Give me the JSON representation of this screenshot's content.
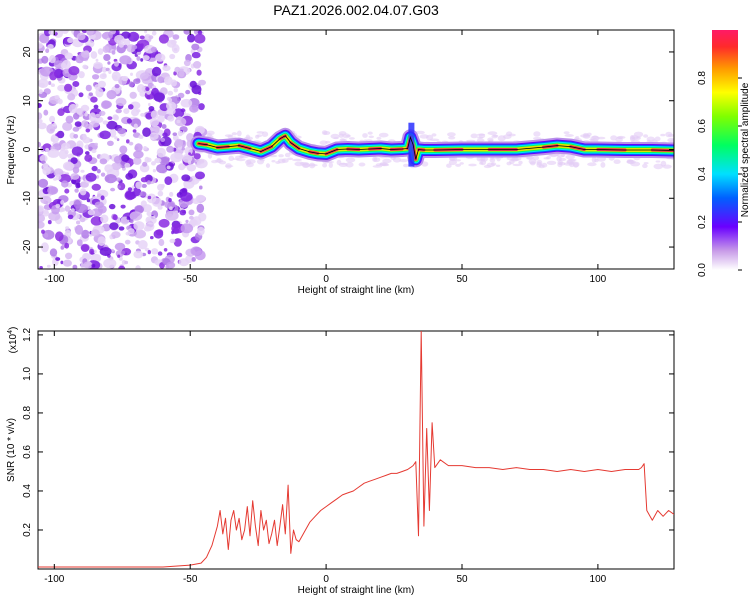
{
  "title": "PAZ1.2026.002.04.07.G03",
  "colors": {
    "snr_line": "#e53a32",
    "axis": "#000000",
    "ridge": "#e8334a",
    "scatter": "#8a2be2"
  },
  "chart_data": [
    {
      "type": "heatmap",
      "xlabel": "Height of straight line (km)",
      "ylabel": "Frequency (Hz)",
      "xlim": [
        -106,
        128
      ],
      "ylim": [
        -24.5,
        24.5
      ],
      "xticks": [
        -100,
        -50,
        0,
        50,
        100
      ],
      "yticks": [
        -20,
        -10,
        0,
        10,
        20
      ],
      "noise_region_x": [
        -106,
        -47
      ],
      "ridge": {
        "x": [
          -47,
          -44,
          -40,
          -36,
          -32,
          -28,
          -24,
          -20,
          -17,
          -15,
          -13,
          -10,
          -6,
          -3,
          0,
          4,
          8,
          12,
          16,
          20,
          24,
          28,
          30,
          31,
          32,
          33,
          34,
          36,
          40,
          50,
          60,
          70,
          80,
          85,
          90,
          95,
          100,
          110,
          120,
          128
        ],
        "y": [
          1.2,
          1.0,
          0.4,
          0.6,
          0.8,
          0.2,
          -0.4,
          0.6,
          2.2,
          2.8,
          1.4,
          0.2,
          -0.5,
          -0.8,
          -0.9,
          0.0,
          0.1,
          0.0,
          0.1,
          0.2,
          0.0,
          0.1,
          0.2,
          2.5,
          1.0,
          -2.0,
          0.0,
          -0.1,
          -0.1,
          0.0,
          0.0,
          0.0,
          0.5,
          0.8,
          0.6,
          0.0,
          0.0,
          -0.1,
          -0.1,
          -0.2
        ]
      },
      "colorbar": {
        "label": "Normalized spectral amplitude",
        "range": [
          0,
          1
        ],
        "ticks": [
          "0.0",
          "0.2",
          "0.4",
          "0.6",
          "0.8"
        ]
      }
    },
    {
      "type": "line",
      "xlabel": "Height of straight line (km)",
      "ylabel": "SNR (10 * v/v)",
      "multiplier_label": "(x10",
      "multiplier_exp": "4",
      "xlim": [
        -106,
        128
      ],
      "ylim": [
        0.0,
        1.22
      ],
      "xticks": [
        -100,
        -50,
        0,
        50,
        100
      ],
      "yticks": [
        "0.2",
        "0.4",
        "0.6",
        "0.8",
        "1.0",
        "1.2"
      ],
      "series": [
        {
          "x": [
            -106,
            -60,
            -50,
            -46,
            -44,
            -42,
            -40,
            -39,
            -38,
            -37,
            -36,
            -35,
            -34,
            -33,
            -32,
            -31,
            -30,
            -29,
            -28,
            -27,
            -26,
            -25,
            -24,
            -23,
            -22,
            -21,
            -20,
            -19,
            -18,
            -17,
            -16,
            -15,
            -14,
            -13,
            -12,
            -11,
            -10,
            -8,
            -6,
            -4,
            -2,
            0,
            2,
            4,
            6,
            8,
            10,
            12,
            14,
            16,
            18,
            20,
            22,
            24,
            26,
            28,
            30,
            31,
            32,
            33,
            34,
            35,
            36,
            37,
            38,
            39,
            40,
            42,
            45,
            50,
            55,
            60,
            65,
            70,
            75,
            80,
            85,
            90,
            95,
            100,
            105,
            110,
            115,
            116,
            117,
            118,
            120,
            122,
            124,
            126,
            128
          ],
          "y": [
            0.01,
            0.01,
            0.02,
            0.03,
            0.06,
            0.12,
            0.22,
            0.3,
            0.18,
            0.26,
            0.1,
            0.25,
            0.3,
            0.2,
            0.26,
            0.15,
            0.2,
            0.32,
            0.17,
            0.35,
            0.22,
            0.12,
            0.3,
            0.2,
            0.25,
            0.13,
            0.18,
            0.25,
            0.12,
            0.22,
            0.33,
            0.18,
            0.43,
            0.08,
            0.2,
            0.15,
            0.14,
            0.19,
            0.24,
            0.27,
            0.3,
            0.32,
            0.34,
            0.36,
            0.38,
            0.39,
            0.4,
            0.42,
            0.44,
            0.45,
            0.46,
            0.47,
            0.48,
            0.49,
            0.49,
            0.5,
            0.51,
            0.52,
            0.53,
            0.55,
            0.17,
            1.22,
            0.22,
            0.72,
            0.3,
            0.75,
            0.52,
            0.56,
            0.53,
            0.53,
            0.52,
            0.52,
            0.51,
            0.52,
            0.51,
            0.51,
            0.5,
            0.51,
            0.5,
            0.51,
            0.5,
            0.51,
            0.51,
            0.52,
            0.54,
            0.3,
            0.25,
            0.3,
            0.27,
            0.3,
            0.28
          ]
        }
      ]
    }
  ]
}
